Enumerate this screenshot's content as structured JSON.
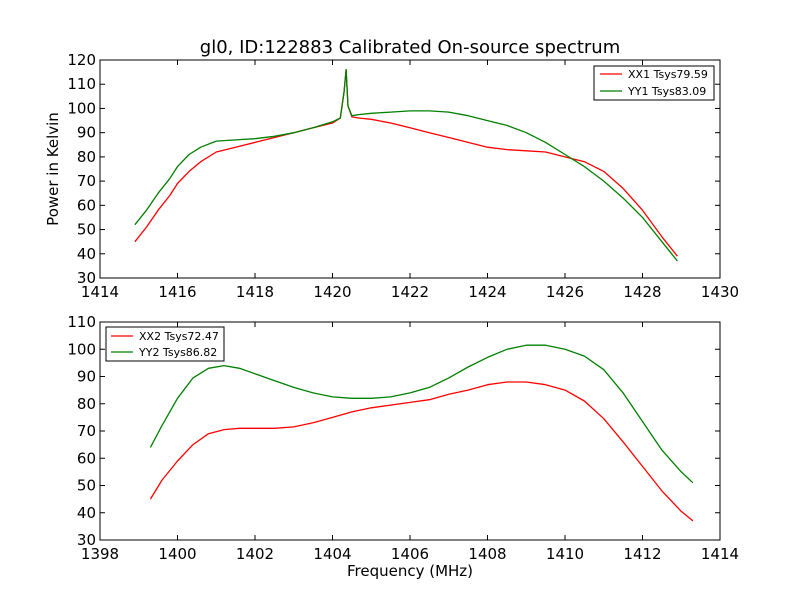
{
  "chart_data": [
    {
      "type": "line",
      "title": "gl0, ID:122883 Calibrated On-source spectrum",
      "xlabel": "",
      "ylabel": "Power in Kelvin",
      "xlim": [
        1414,
        1430
      ],
      "ylim": [
        30,
        120
      ],
      "xticks": [
        1414,
        1416,
        1418,
        1420,
        1422,
        1424,
        1426,
        1428,
        1430
      ],
      "yticks": [
        30,
        40,
        50,
        60,
        70,
        80,
        90,
        100,
        110,
        120
      ],
      "legend_position": "top-right",
      "series": [
        {
          "name": "XX1 Tsys79.59",
          "color": "#ff0000",
          "x": [
            1414.9,
            1415.2,
            1415.5,
            1415.8,
            1416.0,
            1416.3,
            1416.6,
            1417.0,
            1417.5,
            1418.0,
            1418.5,
            1419.0,
            1419.5,
            1420.0,
            1420.2,
            1420.3,
            1420.35,
            1420.4,
            1420.5,
            1420.7,
            1421.0,
            1421.5,
            1422.0,
            1422.5,
            1423.0,
            1423.5,
            1424.0,
            1424.5,
            1425.0,
            1425.5,
            1426.0,
            1426.5,
            1427.0,
            1427.5,
            1428.0,
            1428.5,
            1428.9
          ],
          "y": [
            45,
            51,
            58,
            64,
            69,
            74,
            78,
            82,
            84,
            86,
            88,
            90,
            92,
            94,
            96,
            107,
            116,
            101,
            96.5,
            96,
            95.5,
            94,
            92,
            90,
            88,
            86,
            84,
            83,
            82.5,
            82,
            80,
            78,
            74,
            67,
            58,
            47,
            39
          ]
        },
        {
          "name": "YY1 Tsys83.09",
          "color": "#008000",
          "x": [
            1414.9,
            1415.2,
            1415.5,
            1415.8,
            1416.0,
            1416.3,
            1416.6,
            1417.0,
            1417.5,
            1418.0,
            1418.5,
            1419.0,
            1419.5,
            1420.0,
            1420.2,
            1420.3,
            1420.35,
            1420.4,
            1420.5,
            1420.7,
            1421.0,
            1421.5,
            1422.0,
            1422.5,
            1423.0,
            1423.5,
            1424.0,
            1424.5,
            1425.0,
            1425.5,
            1426.0,
            1426.5,
            1427.0,
            1427.5,
            1428.0,
            1428.5,
            1428.9
          ],
          "y": [
            52,
            58,
            65,
            71,
            76,
            81,
            84,
            86.5,
            87,
            87.5,
            88.5,
            90,
            92,
            94.5,
            96,
            107,
            116,
            101,
            97,
            97.5,
            98,
            98.5,
            99,
            99,
            98.5,
            97,
            95,
            93,
            90,
            86,
            81,
            76,
            70,
            63,
            55,
            45,
            37
          ]
        }
      ]
    },
    {
      "type": "line",
      "title": "",
      "xlabel": "Frequency (MHz)",
      "ylabel": "",
      "xlim": [
        1398,
        1414
      ],
      "ylim": [
        30,
        110
      ],
      "xticks": [
        1398,
        1400,
        1402,
        1404,
        1406,
        1408,
        1410,
        1412,
        1414
      ],
      "yticks": [
        30,
        40,
        50,
        60,
        70,
        80,
        90,
        100,
        110
      ],
      "legend_position": "top-left",
      "series": [
        {
          "name": "XX2 Tsys72.47",
          "color": "#ff0000",
          "x": [
            1399.3,
            1399.6,
            1400.0,
            1400.4,
            1400.8,
            1401.2,
            1401.6,
            1402.0,
            1402.5,
            1403.0,
            1403.5,
            1404.0,
            1404.5,
            1405.0,
            1405.5,
            1406.0,
            1406.5,
            1407.0,
            1407.5,
            1408.0,
            1408.5,
            1409.0,
            1409.5,
            1410.0,
            1410.5,
            1411.0,
            1411.5,
            1412.0,
            1412.5,
            1413.0,
            1413.3
          ],
          "y": [
            45,
            52,
            59,
            65,
            69,
            70.5,
            71,
            71,
            71,
            71.5,
            73,
            75,
            77,
            78.5,
            79.5,
            80.5,
            81.5,
            83.5,
            85,
            87,
            88,
            88,
            87,
            85,
            81,
            74.5,
            66,
            57,
            48,
            40.5,
            37
          ]
        },
        {
          "name": "YY2 Tsys86.82",
          "color": "#008000",
          "x": [
            1399.3,
            1399.6,
            1400.0,
            1400.4,
            1400.8,
            1401.2,
            1401.6,
            1402.0,
            1402.5,
            1403.0,
            1403.5,
            1404.0,
            1404.5,
            1405.0,
            1405.5,
            1406.0,
            1406.5,
            1407.0,
            1407.5,
            1408.0,
            1408.5,
            1409.0,
            1409.5,
            1410.0,
            1410.5,
            1411.0,
            1411.5,
            1412.0,
            1412.5,
            1413.0,
            1413.3
          ],
          "y": [
            64,
            72,
            82,
            89.5,
            93,
            94,
            93,
            91,
            88.5,
            86,
            84,
            82.5,
            82,
            82,
            82.5,
            84,
            86,
            89.5,
            93.5,
            97,
            100,
            101.5,
            101.5,
            100,
            97.5,
            92.5,
            84,
            73.5,
            63,
            55,
            51
          ]
        }
      ]
    }
  ]
}
